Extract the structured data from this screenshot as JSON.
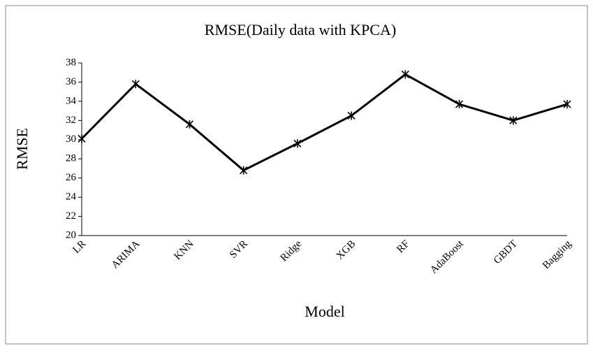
{
  "chart_data": {
    "type": "line",
    "title": "RMSE(Daily data with KPCA)",
    "x_label": "Model",
    "y_label": "RMSE",
    "categories": [
      "LR",
      "ARIMA",
      "KNN",
      "SVR",
      "Ridge",
      "XGB",
      "RF",
      "AdaBoost",
      "GBDT",
      "Bagging"
    ],
    "series": [
      {
        "name": "RMSE",
        "color": "#000000",
        "values": [
          30.1,
          35.8,
          31.6,
          26.8,
          29.6,
          32.5,
          36.8,
          33.7,
          32.0,
          33.7
        ]
      }
    ],
    "ylim": [
      20,
      38
    ],
    "yticks": [
      20,
      22,
      24,
      26,
      28,
      30,
      32,
      34,
      36,
      38
    ],
    "grid": false
  }
}
